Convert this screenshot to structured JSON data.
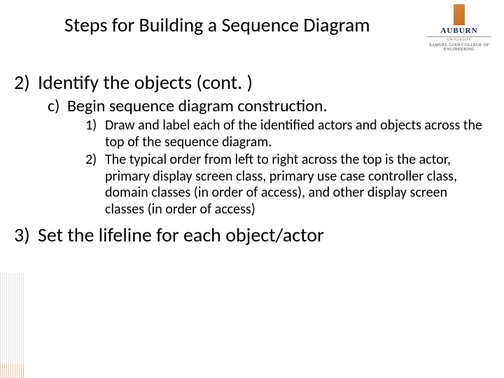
{
  "slide": {
    "title": "Steps for Building a Sequence Diagram",
    "logo": {
      "word": "AUBURN",
      "sub1": "UNIVERSITY",
      "sub2": "SAMUEL GINN COLLEGE OF ENGINEERING"
    },
    "items": {
      "two": {
        "num": "2)",
        "text": "Identify the objects (cont. )"
      },
      "two_c": {
        "num": "c)",
        "text": "Begin sequence diagram construction."
      },
      "two_c_1": {
        "num": "1)",
        "text": "Draw and label each of the identified actors and objects across the top of the sequence diagram."
      },
      "two_c_2": {
        "num": "2)",
        "text": "The typical order from left to right across the top is the actor, primary display screen class, primary use case controller class, domain classes (in order of access), and other display screen classes (in order of access)"
      },
      "three": {
        "num": "3)",
        "text": "Set the lifeline for each object/actor"
      }
    },
    "style": {
      "title_fontsize": 28,
      "lvl1_fontsize": 28,
      "lvl2_fontsize": 24,
      "lvl3_fontsize": 20,
      "text_color": "#000000",
      "background_color": "#ffffff",
      "logo_navy": "#0a2a52",
      "logo_orange": "#d9843a"
    }
  }
}
